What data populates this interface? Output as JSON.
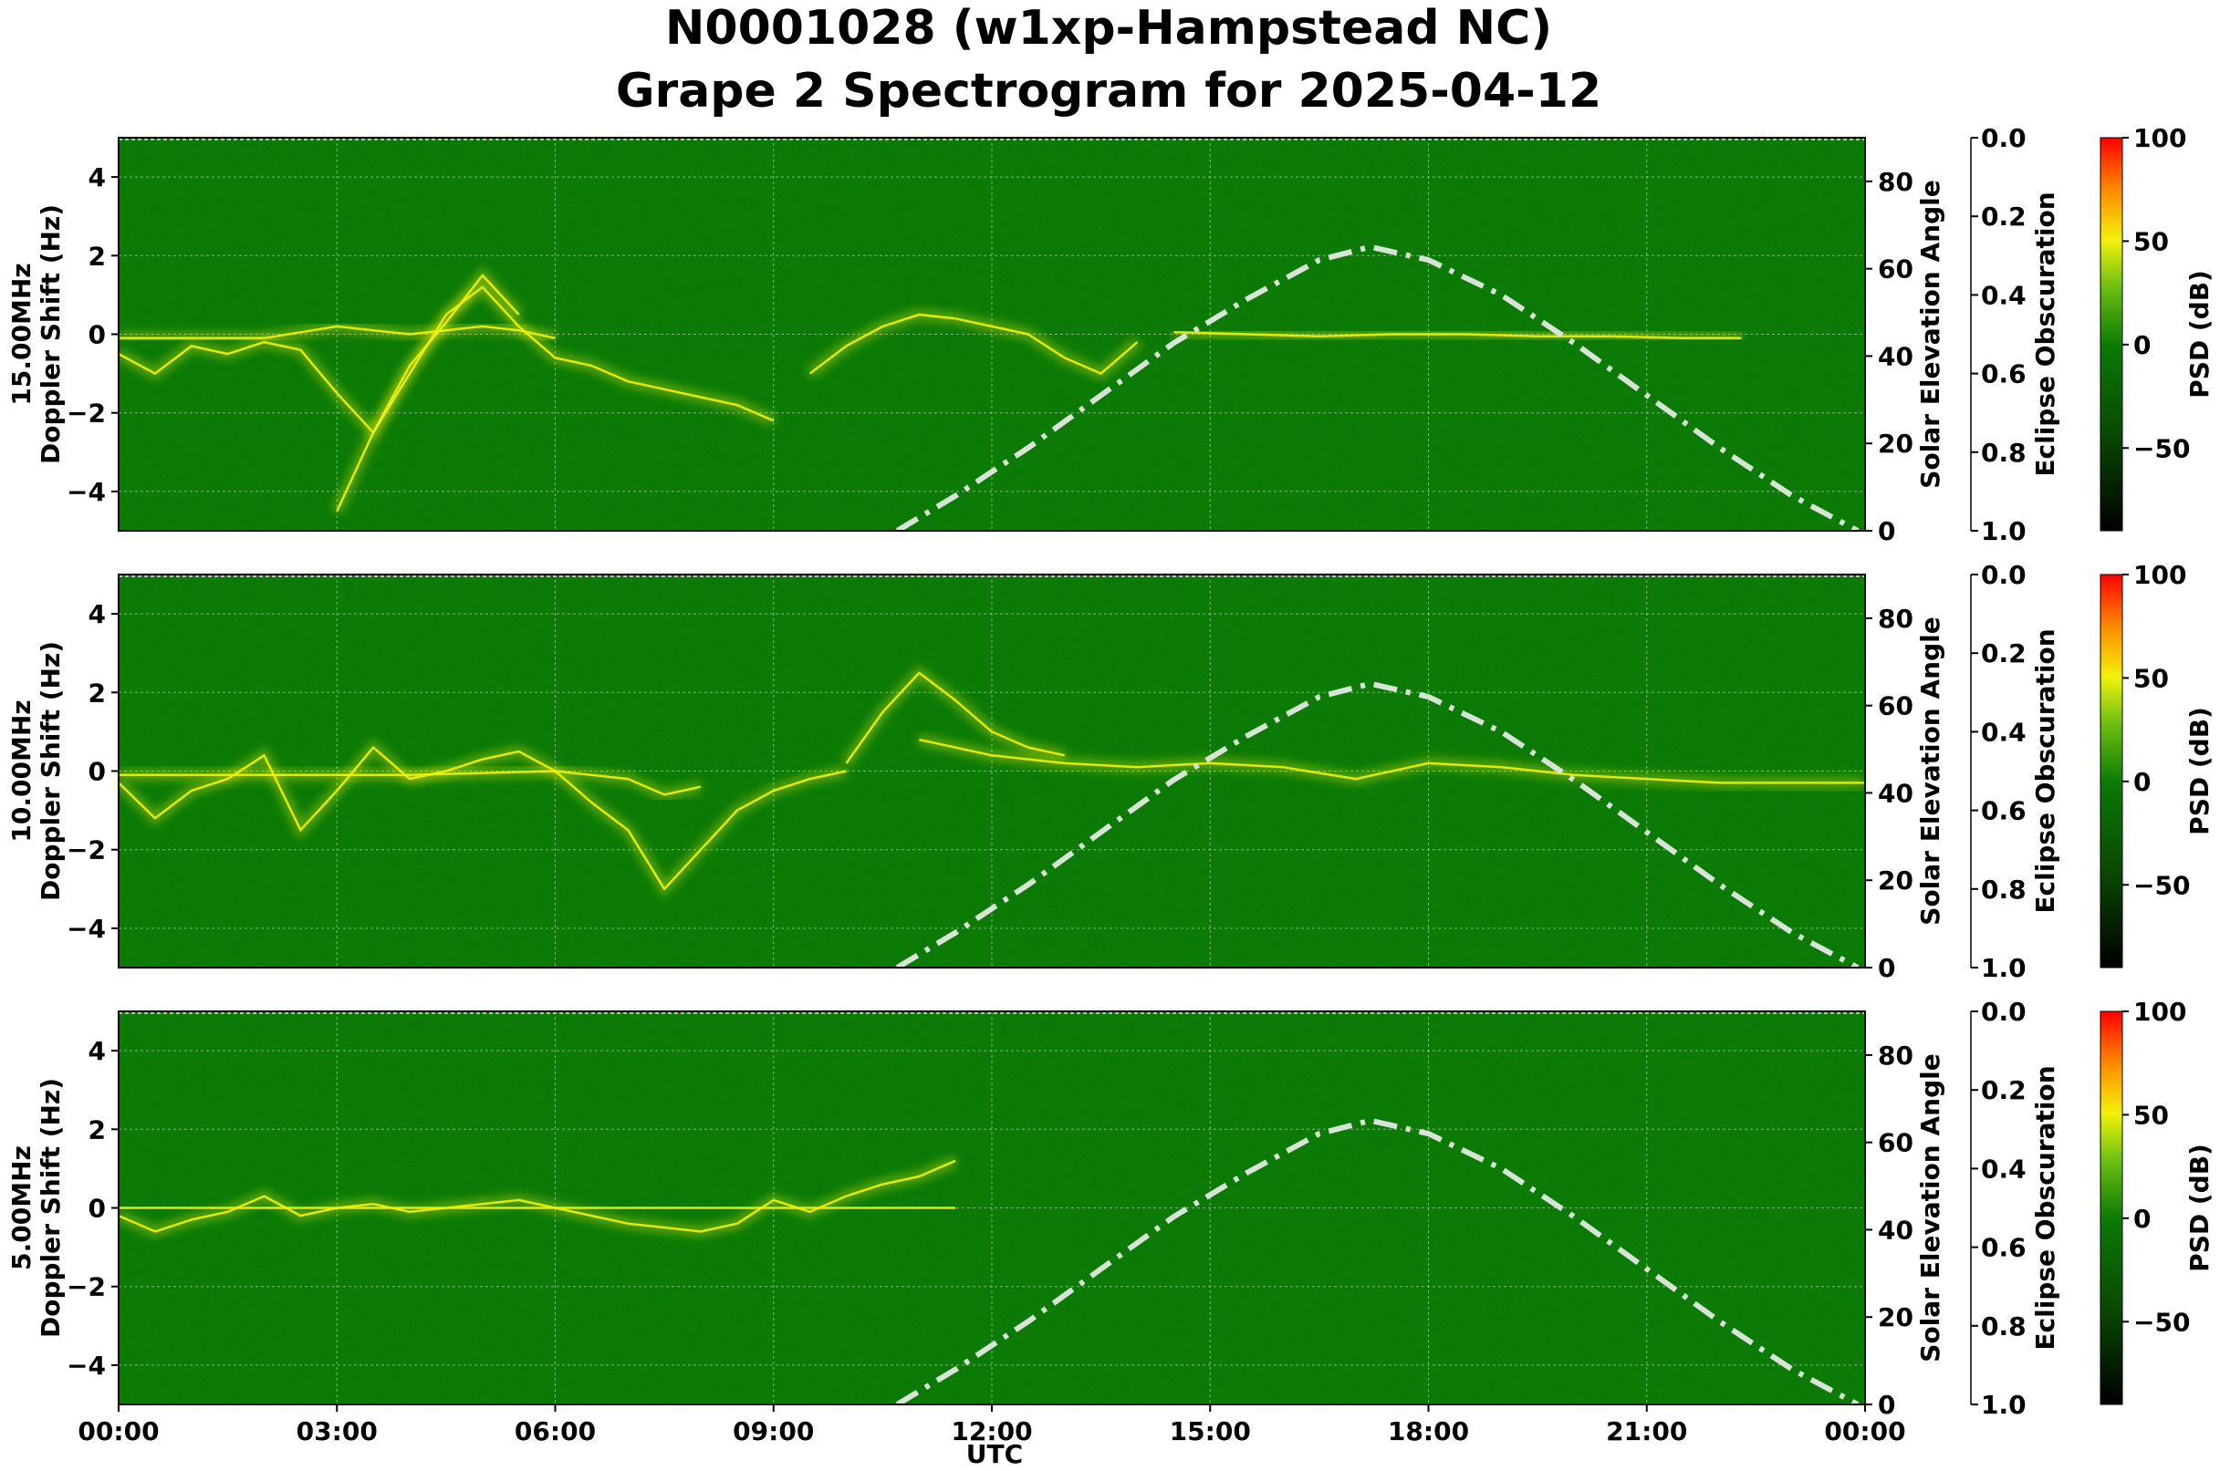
{
  "title_line1": "N0001028 (w1xp-Hampstead NC)",
  "title_line2": "Grape 2 Spectrogram for 2025-04-12",
  "xlabel": "UTC",
  "colors": {
    "background_green": "#0a7a05",
    "signal_yellow": "#f2f20a",
    "elevation_curve": "#d8e4d8",
    "grid": "#ffffff"
  },
  "chart_data": [
    {
      "type": "heatmap",
      "band": "15.00MHz",
      "ylabel_left": [
        "15.00MHz",
        "Doppler Shift (Hz)"
      ],
      "ylim": [
        -5,
        5
      ],
      "yticks": [
        "4",
        "2",
        "0",
        "−2",
        "−4"
      ],
      "ylabel_right": "Solar Elevation Angle",
      "right_ylim": [
        0,
        90
      ],
      "right_yticks": [
        "0",
        "20",
        "40",
        "60",
        "80"
      ],
      "eclipse_label": "Eclipse Obscuration",
      "eclipse_lim": [
        0.0,
        1.0
      ],
      "eclipse_ticks": [
        "0.0",
        "0.2",
        "0.4",
        "0.6",
        "0.8",
        "1.0"
      ],
      "colorbar_label": "PSD (dB)",
      "colorbar_lim": [
        -90,
        100
      ],
      "colorbar_ticks": [
        "100",
        "50",
        "0",
        "−50"
      ],
      "signal_traces": [
        {
          "t": [
            0.0,
            0.5,
            1.0,
            1.5,
            2.0,
            2.5,
            3.0,
            3.5,
            4.0,
            4.5,
            5.0,
            5.5,
            6.0,
            6.5,
            7.0,
            7.5,
            8.0,
            8.5,
            9.0
          ],
          "doppler": [
            -0.5,
            -1.0,
            -0.3,
            -0.5,
            -0.2,
            -0.4,
            -1.5,
            -2.5,
            -1.0,
            0.5,
            1.2,
            0.2,
            -0.6,
            -0.8,
            -1.2,
            -1.4,
            -1.6,
            -1.8,
            -2.2
          ]
        },
        {
          "t": [
            0.0,
            1.0,
            2.0,
            3.0,
            3.5,
            4.0,
            4.5,
            5.0,
            5.5,
            6.0
          ],
          "doppler": [
            -0.1,
            -0.1,
            -0.1,
            0.2,
            0.1,
            0.0,
            0.1,
            0.2,
            0.1,
            -0.1
          ]
        },
        {
          "t": [
            3.0,
            3.5,
            4.0,
            4.5,
            5.0,
            5.5
          ],
          "doppler": [
            -4.5,
            -2.5,
            -0.8,
            0.3,
            1.5,
            0.5
          ]
        },
        {
          "t": [
            9.5,
            10.0,
            10.5,
            11.0,
            11.5,
            12.0,
            12.5,
            13.0,
            13.5,
            14.0
          ],
          "doppler": [
            -1.0,
            -0.3,
            0.2,
            0.5,
            0.4,
            0.2,
            0.0,
            -0.6,
            -1.0,
            -0.2
          ]
        },
        {
          "t": [
            14.5,
            15.5,
            16.5,
            17.5,
            18.5,
            19.5,
            20.5,
            21.5,
            22.3
          ],
          "doppler": [
            0.05,
            0.0,
            -0.05,
            0.0,
            0.0,
            -0.05,
            -0.05,
            -0.1,
            -0.1
          ]
        }
      ]
    },
    {
      "type": "heatmap",
      "band": "10.00MHz",
      "ylabel_left": [
        "10.00MHz",
        "Doppler Shift (Hz)"
      ],
      "ylim": [
        -5,
        5
      ],
      "yticks": [
        "4",
        "2",
        "0",
        "−2",
        "−4"
      ],
      "ylabel_right": "Solar Elevation Angle",
      "right_ylim": [
        0,
        90
      ],
      "right_yticks": [
        "0",
        "20",
        "40",
        "60",
        "80"
      ],
      "eclipse_label": "Eclipse Obscuration",
      "eclipse_lim": [
        0.0,
        1.0
      ],
      "eclipse_ticks": [
        "0.0",
        "0.2",
        "0.4",
        "0.6",
        "0.8",
        "1.0"
      ],
      "colorbar_label": "PSD (dB)",
      "colorbar_lim": [
        -90,
        100
      ],
      "colorbar_ticks": [
        "100",
        "50",
        "0",
        "−50"
      ],
      "signal_traces": [
        {
          "t": [
            0.0,
            0.5,
            1.0,
            1.5,
            2.0,
            2.5,
            3.0,
            3.5,
            4.0,
            4.5,
            5.0,
            5.5,
            6.0,
            6.5,
            7.0,
            7.5,
            8.0,
            8.5,
            9.0,
            9.5,
            10.0
          ],
          "doppler": [
            -0.3,
            -1.2,
            -0.5,
            -0.2,
            0.4,
            -1.5,
            -0.5,
            0.6,
            -0.2,
            0.0,
            0.3,
            0.5,
            0.0,
            -0.8,
            -1.5,
            -3.0,
            -2.0,
            -1.0,
            -0.5,
            -0.2,
            0.0
          ]
        },
        {
          "t": [
            0.0,
            2.0,
            4.0,
            6.0,
            7.0,
            7.5,
            8.0
          ],
          "doppler": [
            -0.1,
            -0.1,
            -0.1,
            0.0,
            -0.2,
            -0.6,
            -0.4
          ]
        },
        {
          "t": [
            10.0,
            10.5,
            11.0,
            11.5,
            12.0,
            12.5,
            13.0
          ],
          "doppler": [
            0.2,
            1.5,
            2.5,
            1.8,
            1.0,
            0.6,
            0.4
          ]
        },
        {
          "t": [
            11.0,
            11.5,
            12.0,
            13.0,
            14.0,
            15.0,
            16.0,
            17.0,
            18.0,
            19.0,
            20.0,
            21.0,
            22.0,
            23.0,
            24.0
          ],
          "doppler": [
            0.8,
            0.6,
            0.4,
            0.2,
            0.1,
            0.2,
            0.1,
            -0.2,
            0.2,
            0.1,
            -0.1,
            -0.2,
            -0.3,
            -0.3,
            -0.3
          ]
        }
      ]
    },
    {
      "type": "heatmap",
      "band": "5.00MHz",
      "ylabel_left": [
        "5.00MHz",
        "Doppler Shift (Hz)"
      ],
      "ylim": [
        -5,
        5
      ],
      "yticks": [
        "4",
        "2",
        "0",
        "−2",
        "−4"
      ],
      "ylabel_right": "Solar Elevation Angle",
      "right_ylim": [
        0,
        90
      ],
      "right_yticks": [
        "0",
        "20",
        "40",
        "60",
        "80"
      ],
      "eclipse_label": "Eclipse Obscuration",
      "eclipse_lim": [
        0.0,
        1.0
      ],
      "eclipse_ticks": [
        "0.0",
        "0.2",
        "0.4",
        "0.6",
        "0.8",
        "1.0"
      ],
      "colorbar_label": "PSD (dB)",
      "colorbar_lim": [
        -90,
        100
      ],
      "colorbar_ticks": [
        "100",
        "50",
        "0",
        "−50"
      ],
      "signal_traces": [
        {
          "t": [
            0.0,
            0.5,
            1.0,
            1.5,
            2.0,
            2.5,
            3.0,
            3.5,
            4.0,
            4.5,
            5.0,
            5.5,
            6.0,
            6.5,
            7.0,
            7.5,
            8.0,
            8.5,
            9.0,
            9.5,
            10.0,
            10.5,
            11.0,
            11.5
          ],
          "doppler": [
            -0.2,
            -0.6,
            -0.3,
            -0.1,
            0.3,
            -0.2,
            0.0,
            0.1,
            -0.1,
            0.0,
            0.1,
            0.2,
            0.0,
            -0.2,
            -0.4,
            -0.5,
            -0.6,
            -0.4,
            0.2,
            -0.1,
            0.3,
            0.6,
            0.8,
            1.2
          ]
        },
        {
          "t": [
            0.0,
            3.0,
            6.0,
            9.0,
            11.5
          ],
          "doppler": [
            0.0,
            0.0,
            0.0,
            0.0,
            0.0
          ]
        }
      ]
    }
  ],
  "x_axis": {
    "xlim_hours": [
      0,
      24
    ],
    "tick_labels": [
      "00:00",
      "03:00",
      "06:00",
      "09:00",
      "12:00",
      "15:00",
      "18:00",
      "21:00",
      "00:00"
    ]
  },
  "solar_elevation": {
    "t": [
      10.7,
      11.5,
      12.5,
      13.5,
      14.5,
      15.5,
      16.5,
      17.2,
      18.0,
      19.0,
      20.0,
      21.0,
      22.0,
      23.0,
      23.9
    ],
    "deg": [
      0,
      8,
      19,
      31,
      43,
      53,
      62,
      65,
      62,
      54,
      43,
      31,
      19,
      8,
      0
    ]
  }
}
